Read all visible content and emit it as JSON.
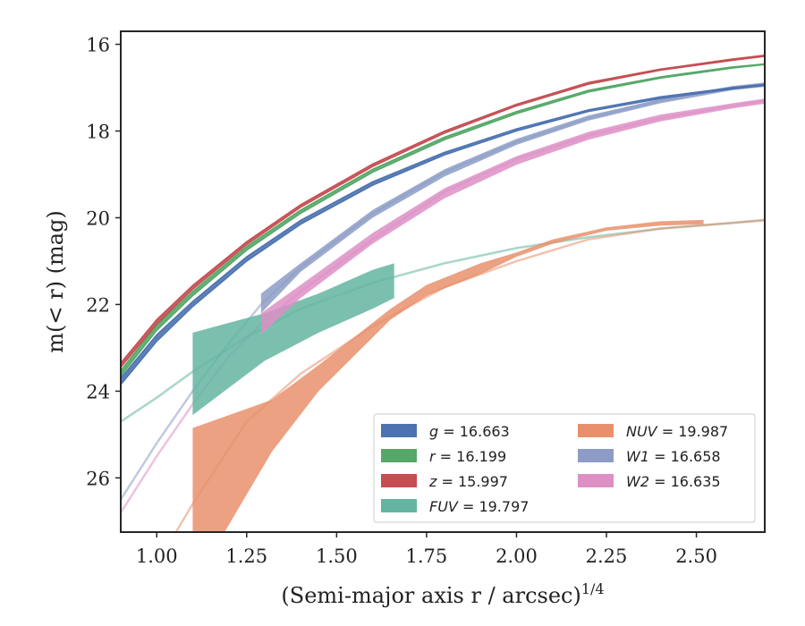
{
  "chart_data": {
    "type": "line",
    "xlabel": "(Semi-major axis r / arcsec)",
    "xlabel_exponent": "1/4",
    "ylabel": "m(< r) (mag)",
    "xlim": [
      0.9,
      2.69
    ],
    "ylim": [
      27.25,
      15.7
    ],
    "y_inverted": true,
    "grid": false,
    "legend_position": "lower-right",
    "x_ticks": [
      1.0,
      1.25,
      1.5,
      1.75,
      2.0,
      2.25,
      2.5
    ],
    "x_tick_labels": [
      "1.00",
      "1.25",
      "1.50",
      "1.75",
      "2.00",
      "2.25",
      "2.50"
    ],
    "y_ticks": [
      16,
      18,
      20,
      22,
      24,
      26
    ],
    "y_tick_labels": [
      "16",
      "18",
      "20",
      "22",
      "24",
      "26"
    ],
    "series": [
      {
        "name": "g = 16.663",
        "legend_label": "g = 16.663",
        "color": "#4c72b0",
        "x": [
          0.9,
          1.0,
          1.1,
          1.25,
          1.4,
          1.6,
          1.8,
          2.0,
          2.2,
          2.4,
          2.6,
          2.69
        ],
        "y_low": [
          23.85,
          22.85,
          22.05,
          21.0,
          20.15,
          19.25,
          18.55,
          18.0,
          17.55,
          17.25,
          17.03,
          16.95
        ],
        "y_high": [
          23.7,
          22.7,
          21.93,
          20.9,
          20.06,
          19.17,
          18.49,
          17.95,
          17.51,
          17.21,
          17.0,
          16.92
        ],
        "band_color": "#4c72b0",
        "faded_x_max": 2.69
      },
      {
        "name": "r = 16.199",
        "legend_label": "r = 16.199",
        "color": "#55a868",
        "x": [
          0.9,
          1.0,
          1.1,
          1.25,
          1.4,
          1.6,
          1.8,
          2.0,
          2.2,
          2.4,
          2.6,
          2.69
        ],
        "y_low": [
          23.65,
          22.6,
          21.8,
          20.75,
          19.9,
          18.95,
          18.2,
          17.6,
          17.1,
          16.78,
          16.55,
          16.47
        ],
        "y_high": [
          23.52,
          22.48,
          21.7,
          20.66,
          19.82,
          18.88,
          18.14,
          17.55,
          17.06,
          16.75,
          16.52,
          16.45
        ],
        "band_color": "#55a868",
        "faded_x_max": 2.69
      },
      {
        "name": "z = 15.997",
        "legend_label": "z = 15.997",
        "color": "#c44e52",
        "x": [
          0.9,
          1.0,
          1.1,
          1.25,
          1.4,
          1.6,
          1.8,
          2.0,
          2.2,
          2.4,
          2.6,
          2.69
        ],
        "y_low": [
          23.45,
          22.45,
          21.65,
          20.62,
          19.76,
          18.82,
          18.05,
          17.42,
          16.92,
          16.6,
          16.37,
          16.28
        ],
        "y_high": [
          23.35,
          22.35,
          21.56,
          20.55,
          19.7,
          18.76,
          18.0,
          17.38,
          16.88,
          16.57,
          16.34,
          16.25
        ],
        "band_color": "#c44e52",
        "faded_x_max": 2.69
      },
      {
        "name": "FUV = 19.797",
        "legend_label": "FUV = 19.797",
        "color": "#64b5a0",
        "x": [
          0.9,
          1.0,
          1.1,
          1.25,
          1.4,
          1.6,
          1.8,
          2.0,
          2.2,
          2.4,
          2.6,
          2.69
        ],
        "y_mid": [
          24.7,
          24.15,
          23.55,
          22.75,
          22.1,
          21.5,
          21.05,
          20.7,
          20.45,
          20.25,
          20.12,
          20.05
        ],
        "band": {
          "x": [
            1.1,
            1.3,
            1.45,
            1.6,
            1.66
          ],
          "y_low": [
            24.55,
            23.3,
            22.65,
            22.1,
            21.85
          ],
          "y_high": [
            22.65,
            22.2,
            21.75,
            21.2,
            21.05
          ]
        }
      },
      {
        "name": "NUV = 19.987",
        "legend_label": "NUV = 19.987",
        "color": "#e8906c",
        "x": [
          0.9,
          1.0,
          1.1,
          1.25,
          1.4,
          1.6,
          1.8,
          2.0,
          2.2,
          2.4,
          2.6,
          2.69
        ],
        "y_mid": [
          29.5,
          28.0,
          26.6,
          24.7,
          23.6,
          22.5,
          21.6,
          21.0,
          20.5,
          20.25,
          20.12,
          20.06
        ],
        "band": {
          "x": [
            1.1,
            1.32,
            1.45,
            1.65,
            1.75,
            1.9,
            2.0,
            2.1,
            2.25,
            2.4,
            2.52
          ],
          "y_low": [
            28.5,
            25.4,
            24.0,
            22.35,
            21.8,
            21.3,
            20.9,
            20.6,
            20.3,
            20.18,
            20.15
          ],
          "y_high": [
            24.85,
            24.2,
            23.4,
            22.1,
            21.55,
            21.05,
            20.8,
            20.5,
            20.22,
            20.08,
            20.05
          ]
        }
      },
      {
        "name": "W1 = 16.658",
        "legend_label": "W1 = 16.658",
        "color": "#8c9cc6",
        "x": [
          0.9,
          1.0,
          1.1,
          1.2,
          1.29,
          1.4,
          1.6,
          1.8,
          2.0,
          2.2,
          2.4,
          2.6,
          2.69
        ],
        "y_mid": [
          26.5,
          25.2,
          24.0,
          22.9,
          22.0,
          21.15,
          19.9,
          18.95,
          18.25,
          17.7,
          17.3,
          17.0,
          16.92
        ],
        "band": {
          "x": [
            1.29,
            1.4,
            1.6,
            1.8,
            2.0,
            2.2,
            2.4,
            2.6,
            2.69
          ],
          "y_low": [
            22.2,
            21.25,
            20.0,
            19.05,
            18.32,
            17.76,
            17.36,
            17.06,
            16.98
          ],
          "y_high": [
            21.75,
            21.05,
            19.82,
            18.88,
            18.18,
            17.64,
            17.26,
            16.96,
            16.88
          ]
        }
      },
      {
        "name": "W2 = 16.635",
        "legend_label": "W2 = 16.635",
        "color": "#dd8fc6",
        "x": [
          0.9,
          1.0,
          1.1,
          1.2,
          1.29,
          1.4,
          1.6,
          1.8,
          2.0,
          2.2,
          2.4,
          2.6,
          2.69
        ],
        "y_mid": [
          26.8,
          25.5,
          24.3,
          23.2,
          22.45,
          21.7,
          20.5,
          19.4,
          18.65,
          18.1,
          17.7,
          17.42,
          17.3
        ],
        "band": {
          "x": [
            1.29,
            1.4,
            1.6,
            1.8,
            2.0,
            2.2,
            2.4,
            2.6,
            2.69
          ],
          "y_low": [
            22.7,
            21.85,
            20.6,
            19.55,
            18.78,
            18.2,
            17.78,
            17.48,
            17.37
          ],
          "y_high": [
            22.2,
            21.55,
            20.35,
            19.32,
            18.58,
            18.02,
            17.62,
            17.36,
            17.25
          ]
        }
      }
    ]
  }
}
